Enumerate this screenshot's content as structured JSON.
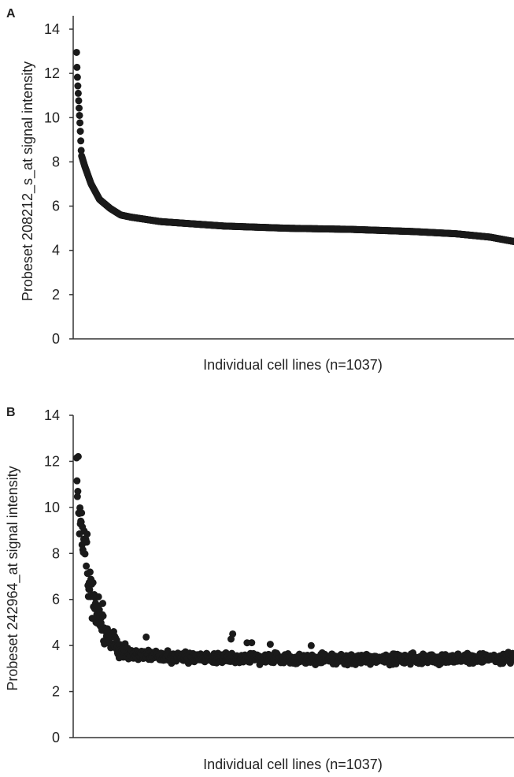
{
  "chart_data": [
    {
      "type": "scatter",
      "panel_label": "A",
      "title": "",
      "xlabel": "Individual cell lines (n=1037)",
      "ylabel": "Probeset 208212_s_at signal intensity",
      "xlim": [
        0,
        1037
      ],
      "ylim": [
        0,
        14
      ],
      "yticks": [
        0,
        2,
        4,
        6,
        8,
        10,
        12,
        14
      ],
      "grid": false,
      "legend": "none",
      "marker_color": "#1a1a1a",
      "pattern": "sorted descending, noise-free",
      "profile_x_y": [
        [
          0,
          13.4
        ],
        [
          1,
          12.5
        ],
        [
          3,
          11.6
        ],
        [
          6,
          10.6
        ],
        [
          9,
          9.6
        ],
        [
          12,
          8.3
        ],
        [
          20,
          7.8
        ],
        [
          35,
          7.0
        ],
        [
          55,
          6.3
        ],
        [
          80,
          5.9
        ],
        [
          105,
          5.6
        ],
        [
          130,
          5.5
        ],
        [
          200,
          5.3
        ],
        [
          350,
          5.1
        ],
        [
          500,
          5.0
        ],
        [
          650,
          4.95
        ],
        [
          800,
          4.85
        ],
        [
          900,
          4.75
        ],
        [
          980,
          4.6
        ],
        [
          1037,
          4.4
        ]
      ]
    },
    {
      "type": "scatter",
      "panel_label": "B",
      "title": "",
      "xlabel": "Individual cell lines (n=1037)",
      "ylabel": "Probeset 242964_at signal intensity",
      "xlim": [
        0,
        1037
      ],
      "ylim": [
        0,
        14
      ],
      "yticks": [
        0,
        2,
        4,
        6,
        8,
        10,
        12,
        14
      ],
      "grid": false,
      "legend": "none",
      "marker_color": "#1a1a1a",
      "pattern": "decreasing with scatter; baseline about 3.4",
      "profile_x_y": [
        [
          0,
          12.4
        ],
        [
          3,
          11.2
        ],
        [
          8,
          10.0
        ],
        [
          15,
          9.0
        ],
        [
          22,
          8.2
        ],
        [
          30,
          7.0
        ],
        [
          40,
          6.2
        ],
        [
          55,
          5.4
        ],
        [
          70,
          4.7
        ],
        [
          90,
          4.0
        ],
        [
          120,
          3.7
        ],
        [
          200,
          3.5
        ],
        [
          600,
          3.4
        ],
        [
          1037,
          3.45
        ]
      ],
      "baseline_spread": [
        3.1,
        4.4
      ]
    }
  ]
}
